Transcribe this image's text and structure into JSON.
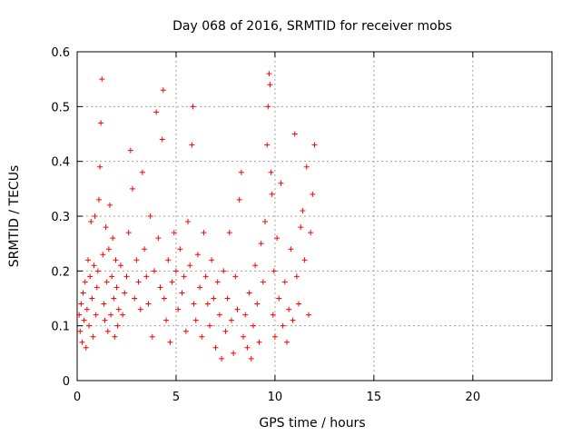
{
  "chart_data": {
    "type": "scatter",
    "title": "Day 068 of 2016, SRMTID for receiver mobs",
    "xlabel": "GPS time / hours",
    "ylabel": "SRMTID / TECUs",
    "xlim": [
      0,
      24
    ],
    "ylim": [
      0,
      0.6
    ],
    "x_ticks": [
      "0",
      "5",
      "10",
      "15",
      "20"
    ],
    "y_ticks": [
      "0",
      "0.1",
      "0.2",
      "0.3",
      "0.4",
      "0.5",
      "0.6"
    ],
    "grid": true,
    "marker": "plus",
    "color": "#ff0000",
    "series": [
      {
        "values": [
          [
            0.1,
            0.12
          ],
          [
            0.15,
            0.09
          ],
          [
            0.2,
            0.14
          ],
          [
            0.25,
            0.07
          ],
          [
            0.3,
            0.16
          ],
          [
            0.35,
            0.11
          ],
          [
            0.4,
            0.18
          ],
          [
            0.45,
            0.06
          ],
          [
            0.5,
            0.13
          ],
          [
            0.55,
            0.22
          ],
          [
            0.6,
            0.1
          ],
          [
            0.65,
            0.19
          ],
          [
            0.7,
            0.29
          ],
          [
            0.75,
            0.15
          ],
          [
            0.8,
            0.08
          ],
          [
            0.85,
            0.21
          ],
          [
            0.9,
            0.3
          ],
          [
            0.95,
            0.12
          ],
          [
            1.0,
            0.17
          ],
          [
            1.05,
            0.2
          ],
          [
            1.1,
            0.33
          ],
          [
            1.15,
            0.39
          ],
          [
            1.2,
            0.47
          ],
          [
            1.25,
            0.55
          ],
          [
            1.3,
            0.23
          ],
          [
            1.35,
            0.14
          ],
          [
            1.4,
            0.11
          ],
          [
            1.45,
            0.28
          ],
          [
            1.5,
            0.18
          ],
          [
            1.55,
            0.09
          ],
          [
            1.6,
            0.24
          ],
          [
            1.65,
            0.32
          ],
          [
            1.7,
            0.12
          ],
          [
            1.75,
            0.19
          ],
          [
            1.8,
            0.26
          ],
          [
            1.85,
            0.15
          ],
          [
            1.9,
            0.08
          ],
          [
            1.95,
            0.22
          ],
          [
            2.0,
            0.17
          ],
          [
            2.05,
            0.1
          ],
          [
            2.1,
            0.13
          ],
          [
            2.2,
            0.21
          ],
          [
            2.3,
            0.12
          ],
          [
            2.4,
            0.16
          ],
          [
            2.5,
            0.19
          ],
          [
            2.6,
            0.27
          ],
          [
            2.7,
            0.42
          ],
          [
            2.8,
            0.35
          ],
          [
            2.9,
            0.15
          ],
          [
            3.0,
            0.22
          ],
          [
            3.1,
            0.18
          ],
          [
            3.2,
            0.13
          ],
          [
            3.3,
            0.38
          ],
          [
            3.4,
            0.24
          ],
          [
            3.5,
            0.19
          ],
          [
            3.6,
            0.14
          ],
          [
            3.7,
            0.3
          ],
          [
            3.8,
            0.08
          ],
          [
            3.9,
            0.2
          ],
          [
            4.0,
            0.49
          ],
          [
            4.1,
            0.26
          ],
          [
            4.2,
            0.17
          ],
          [
            4.3,
            0.44
          ],
          [
            4.35,
            0.53
          ],
          [
            4.4,
            0.15
          ],
          [
            4.5,
            0.11
          ],
          [
            4.6,
            0.22
          ],
          [
            4.7,
            0.07
          ],
          [
            4.8,
            0.18
          ],
          [
            4.9,
            0.27
          ],
          [
            5.0,
            0.2
          ],
          [
            5.1,
            0.13
          ],
          [
            5.2,
            0.24
          ],
          [
            5.3,
            0.16
          ],
          [
            5.4,
            0.19
          ],
          [
            5.5,
            0.09
          ],
          [
            5.6,
            0.29
          ],
          [
            5.7,
            0.21
          ],
          [
            5.8,
            0.43
          ],
          [
            5.85,
            0.5
          ],
          [
            5.9,
            0.14
          ],
          [
            6.0,
            0.11
          ],
          [
            6.1,
            0.23
          ],
          [
            6.2,
            0.17
          ],
          [
            6.3,
            0.08
          ],
          [
            6.4,
            0.27
          ],
          [
            6.5,
            0.19
          ],
          [
            6.6,
            0.14
          ],
          [
            6.7,
            0.1
          ],
          [
            6.8,
            0.22
          ],
          [
            6.9,
            0.15
          ],
          [
            7.0,
            0.06
          ],
          [
            7.1,
            0.18
          ],
          [
            7.2,
            0.12
          ],
          [
            7.3,
            0.04
          ],
          [
            7.4,
            0.2
          ],
          [
            7.5,
            0.09
          ],
          [
            7.6,
            0.15
          ],
          [
            7.7,
            0.27
          ],
          [
            7.8,
            0.11
          ],
          [
            7.9,
            0.05
          ],
          [
            8.0,
            0.19
          ],
          [
            8.1,
            0.13
          ],
          [
            8.2,
            0.33
          ],
          [
            8.3,
            0.38
          ],
          [
            8.4,
            0.08
          ],
          [
            8.5,
            0.12
          ],
          [
            8.6,
            0.06
          ],
          [
            8.7,
            0.16
          ],
          [
            8.8,
            0.04
          ],
          [
            8.9,
            0.1
          ],
          [
            9.0,
            0.21
          ],
          [
            9.1,
            0.14
          ],
          [
            9.2,
            0.07
          ],
          [
            9.3,
            0.25
          ],
          [
            9.4,
            0.18
          ],
          [
            9.5,
            0.29
          ],
          [
            9.6,
            0.43
          ],
          [
            9.65,
            0.5
          ],
          [
            9.7,
            0.56
          ],
          [
            9.75,
            0.54
          ],
          [
            9.8,
            0.38
          ],
          [
            9.85,
            0.34
          ],
          [
            9.9,
            0.12
          ],
          [
            9.95,
            0.2
          ],
          [
            10.0,
            0.08
          ],
          [
            10.1,
            0.26
          ],
          [
            10.2,
            0.15
          ],
          [
            10.3,
            0.36
          ],
          [
            10.4,
            0.1
          ],
          [
            10.5,
            0.18
          ],
          [
            10.6,
            0.07
          ],
          [
            10.7,
            0.13
          ],
          [
            10.8,
            0.24
          ],
          [
            10.9,
            0.11
          ],
          [
            11.0,
            0.45
          ],
          [
            11.1,
            0.19
          ],
          [
            11.2,
            0.14
          ],
          [
            11.3,
            0.28
          ],
          [
            11.4,
            0.31
          ],
          [
            11.5,
            0.22
          ],
          [
            11.6,
            0.39
          ],
          [
            11.7,
            0.12
          ],
          [
            11.8,
            0.27
          ],
          [
            11.9,
            0.34
          ],
          [
            12.0,
            0.43
          ]
        ]
      }
    ]
  }
}
